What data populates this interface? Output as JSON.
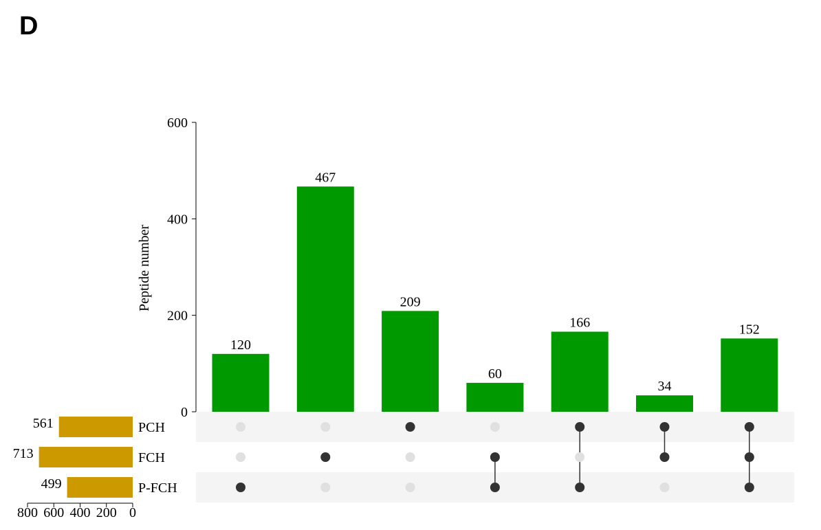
{
  "chart_data": {
    "type": "upset",
    "panel_label": "D",
    "y_label": "Peptide number",
    "values": [
      120,
      467,
      209,
      60,
      166,
      34,
      152
    ],
    "color": "#009900",
    "ylim": [
      0,
      600
    ],
    "yticks": [
      0,
      200,
      400,
      600
    ],
    "sets": [
      "PCH",
      "FCH",
      "P-FCH"
    ],
    "set_sizes": [
      561,
      713,
      499
    ],
    "set_color": "#cc9900",
    "set_xlim": [
      800,
      0
    ],
    "set_xticks": [
      800,
      600,
      400,
      200,
      0
    ],
    "matrix": [
      [
        0,
        0,
        1
      ],
      [
        0,
        1,
        0
      ],
      [
        1,
        0,
        0
      ],
      [
        0,
        1,
        1
      ],
      [
        1,
        0,
        1
      ],
      [
        1,
        1,
        0
      ],
      [
        1,
        1,
        1
      ]
    ],
    "dot_color": "#333333",
    "empty_dot_color": "#e0e0e0",
    "row_shade": "#f4f4f4"
  }
}
